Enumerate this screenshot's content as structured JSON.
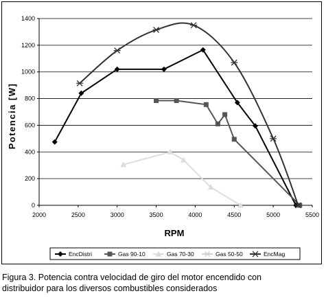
{
  "chart_data": {
    "type": "line",
    "xlabel": "RPM",
    "ylabel": "Potencia [W]",
    "xlim": [
      2000,
      5500
    ],
    "ylim": [
      0,
      1400
    ],
    "xticks": [
      2000,
      2500,
      3000,
      3500,
      4000,
      4500,
      5000,
      5500
    ],
    "yticks": [
      0,
      200,
      400,
      600,
      800,
      1000,
      1200,
      1400
    ],
    "grid": "horizontal",
    "legend_position": "bottom",
    "smooth_series": [
      "EncMag"
    ],
    "series": [
      {
        "name": "EncDistri",
        "marker": "diamond",
        "color": "#000000",
        "x": [
          2200,
          2540,
          3000,
          3600,
          4100,
          4540,
          4770,
          5290
        ],
        "y": [
          475,
          840,
          1020,
          1020,
          1165,
          770,
          595,
          0
        ]
      },
      {
        "name": "Gas 90-10",
        "marker": "square",
        "color": "#555555",
        "x": [
          3500,
          3760,
          4140,
          4290,
          4380,
          4500,
          5340
        ],
        "y": [
          785,
          785,
          755,
          610,
          680,
          495,
          0
        ]
      },
      {
        "name": "Gas 70-30",
        "marker": "triangle",
        "color": "#dddddd",
        "x": [
          3080,
          3680,
          3850,
          4200,
          4580
        ],
        "y": [
          305,
          400,
          340,
          135,
          0
        ]
      },
      {
        "name": "Gas 50-50",
        "marker": "cross",
        "color": "#d0d0d0",
        "x": [],
        "y": []
      },
      {
        "name": "EncMag",
        "marker": "star",
        "color": "#333333",
        "x": [
          2520,
          3000,
          3500,
          3980,
          4500,
          5000,
          5320
        ],
        "y": [
          915,
          1160,
          1315,
          1350,
          1070,
          500,
          0
        ]
      }
    ]
  },
  "caption": {
    "line1": "Figura 3. Potencia contra velocidad de giro del motor encendido con",
    "line2": "distribuidor para los diversos combustibles considerados"
  }
}
